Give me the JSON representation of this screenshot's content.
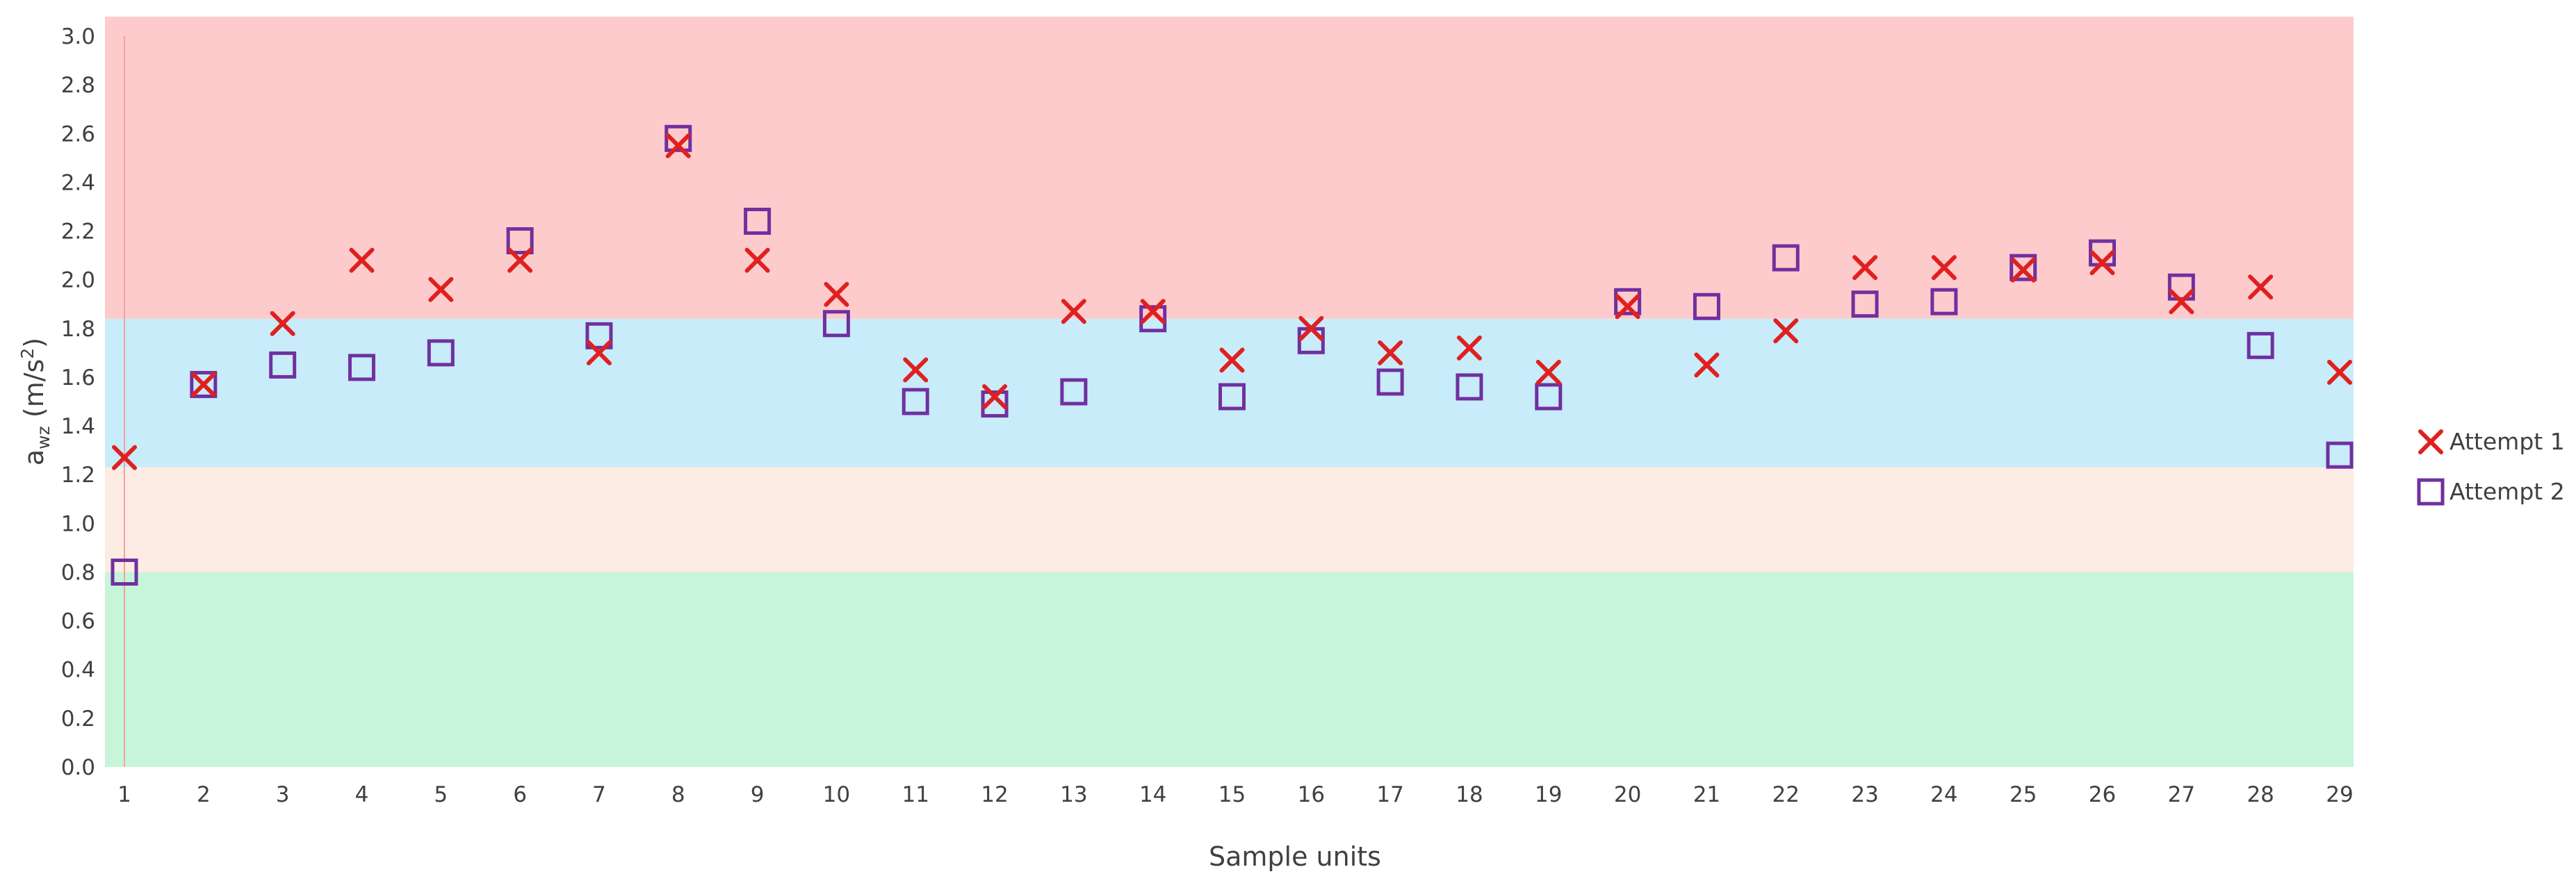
{
  "chart_data": {
    "type": "scatter",
    "title": "",
    "xlabel": "Sample units",
    "ylabel": {
      "base": "a",
      "sub": "wz",
      "unit_open": " (m/s",
      "sup": "2",
      "unit_close": ")"
    },
    "xlim": [
      1,
      29
    ],
    "ylim": [
      0,
      3.0
    ],
    "categories": [
      "1",
      "2",
      "3",
      "4",
      "5",
      "6",
      "7",
      "8",
      "9",
      "10",
      "11",
      "12",
      "13",
      "14",
      "15",
      "16",
      "17",
      "18",
      "19",
      "20",
      "21",
      "22",
      "23",
      "24",
      "25",
      "26",
      "27",
      "28",
      "29"
    ],
    "y_ticks": [
      "0.0",
      "0.2",
      "0.4",
      "0.6",
      "0.8",
      "1.0",
      "1.2",
      "1.4",
      "1.6",
      "1.8",
      "2.0",
      "2.2",
      "2.4",
      "2.6",
      "2.8",
      "3.0"
    ],
    "bands": [
      {
        "from": 0.0,
        "to": 0.8,
        "color": "#c6f5d9"
      },
      {
        "from": 0.8,
        "to": 1.23,
        "color": "#fdece3"
      },
      {
        "from": 1.23,
        "to": 1.84,
        "color": "#c8ecf9"
      },
      {
        "from": 1.84,
        "to": 3.08,
        "color": "#fdcbcb"
      }
    ],
    "series": [
      {
        "name": "Attempt 1",
        "marker": "x",
        "color": "#e02020",
        "values": [
          1.27,
          1.57,
          1.82,
          2.08,
          1.96,
          2.08,
          1.7,
          2.55,
          2.08,
          1.94,
          1.63,
          1.52,
          1.87,
          1.87,
          1.67,
          1.8,
          1.7,
          1.72,
          1.62,
          1.89,
          1.65,
          1.79,
          2.05,
          2.05,
          2.04,
          2.07,
          1.91,
          1.97,
          1.62
        ]
      },
      {
        "name": "Attempt 2",
        "marker": "square",
        "color": "#7030a0",
        "values": [
          0.8,
          1.57,
          1.65,
          1.64,
          1.7,
          2.16,
          1.77,
          2.58,
          2.24,
          1.82,
          1.5,
          1.49,
          1.54,
          1.84,
          1.52,
          1.75,
          1.58,
          1.56,
          1.52,
          1.91,
          1.89,
          2.09,
          1.9,
          1.91,
          2.05,
          2.11,
          1.97,
          1.73,
          1.28
        ]
      }
    ],
    "legend_position": "right"
  }
}
